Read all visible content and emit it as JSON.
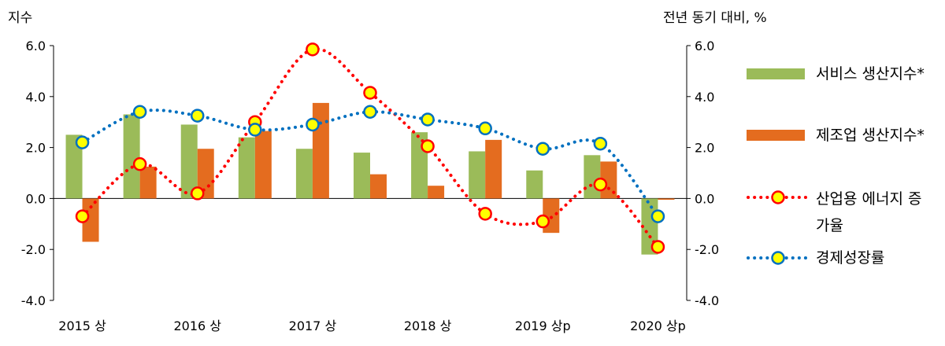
{
  "chart_data": {
    "type": "bar+line",
    "left_axis_title": "지수",
    "right_axis_title": "전년 동기 대비, %",
    "ylim": [
      -4.0,
      6.0
    ],
    "y_ticks": [
      "6.0",
      "4.0",
      "2.0",
      "0.0",
      "-2.0",
      "-4.0"
    ],
    "x_tick_labels": [
      "2015 상",
      "2016 상",
      "2017 상",
      "2018 상",
      "2019 상p",
      "2020 상p"
    ],
    "periods": 11,
    "grid": false,
    "legend_position": "right",
    "series": [
      {
        "name": "서비스 생산지수*",
        "type": "bar",
        "color": "#9bbb59",
        "values": [
          2.5,
          3.3,
          2.9,
          2.4,
          1.95,
          1.8,
          2.6,
          1.85,
          1.1,
          1.7,
          -2.2
        ]
      },
      {
        "name": "제조업 생산지수*",
        "type": "bar",
        "color": "#e46c1f",
        "values": [
          -1.7,
          1.25,
          1.95,
          2.65,
          3.75,
          0.95,
          0.5,
          2.3,
          -1.35,
          1.45,
          -0.05
        ]
      },
      {
        "name": "산업용 에너지 증가율",
        "type": "line",
        "style": "dotted",
        "color": "#ff0000",
        "values": [
          -0.7,
          1.35,
          0.2,
          3.0,
          5.85,
          4.15,
          2.05,
          -0.6,
          -0.9,
          0.55,
          -1.9
        ]
      },
      {
        "name": "경제성장률",
        "type": "line",
        "style": "dotted",
        "color": "#0070c0",
        "values": [
          2.2,
          3.4,
          3.25,
          2.7,
          2.9,
          3.4,
          3.1,
          2.75,
          1.95,
          2.15,
          -0.7
        ]
      }
    ]
  }
}
